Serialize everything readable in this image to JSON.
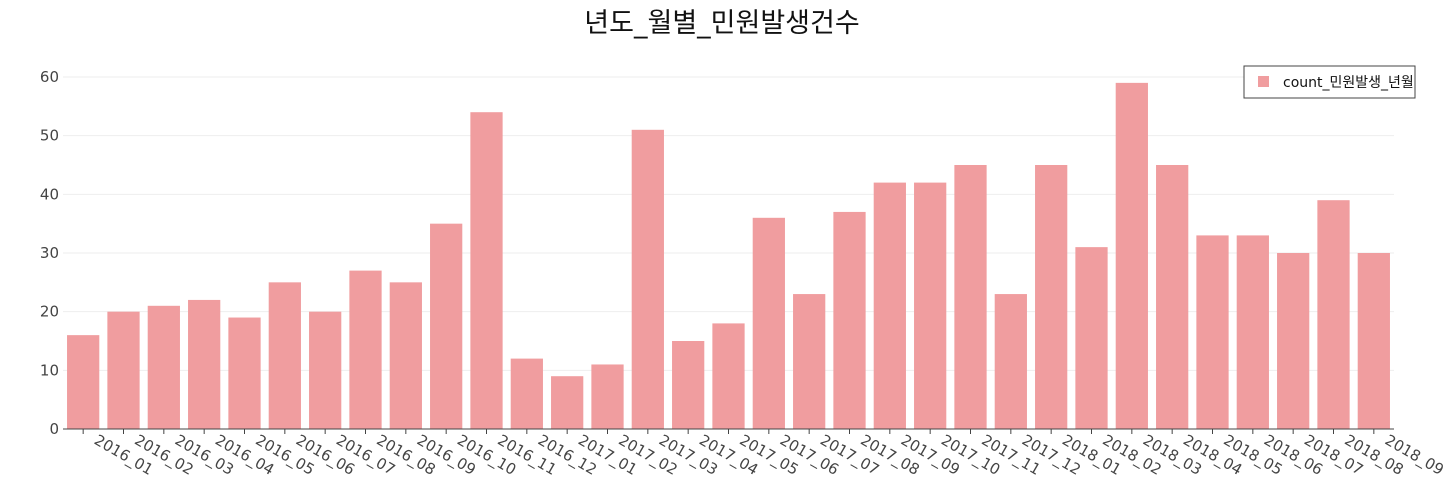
{
  "chart_data": {
    "type": "bar",
    "title": "년도_월별_민원발생건수",
    "xlabel": "",
    "ylabel": "",
    "ylim": [
      0,
      60
    ],
    "yticks": [
      0,
      10,
      20,
      30,
      40,
      50,
      60
    ],
    "grid": true,
    "legend_position": "top-right",
    "color": "#f09d9f",
    "categories": [
      "2016_01",
      "2016_02",
      "2016_03",
      "2016_04",
      "2016_05",
      "2016_06",
      "2016_07",
      "2016_08",
      "2016_09",
      "2016_10",
      "2016_11",
      "2016_12",
      "2017_01",
      "2017_02",
      "2017_03",
      "2017_04",
      "2017_05",
      "2017_06",
      "2017_07",
      "2017_08",
      "2017_09",
      "2017_10",
      "2017_11",
      "2017_12",
      "2018_01",
      "2018_02",
      "2018_03",
      "2018_04",
      "2018_05",
      "2018_06",
      "2018_07",
      "2018_08",
      "2018_09"
    ],
    "series": [
      {
        "name": "count_민원발생_년월",
        "values": [
          16,
          20,
          21,
          22,
          19,
          25,
          20,
          27,
          25,
          35,
          54,
          12,
          9,
          11,
          51,
          15,
          18,
          36,
          23,
          37,
          42,
          42,
          45,
          23,
          45,
          31,
          59,
          45,
          33,
          33,
          30,
          39,
          30
        ]
      }
    ]
  }
}
